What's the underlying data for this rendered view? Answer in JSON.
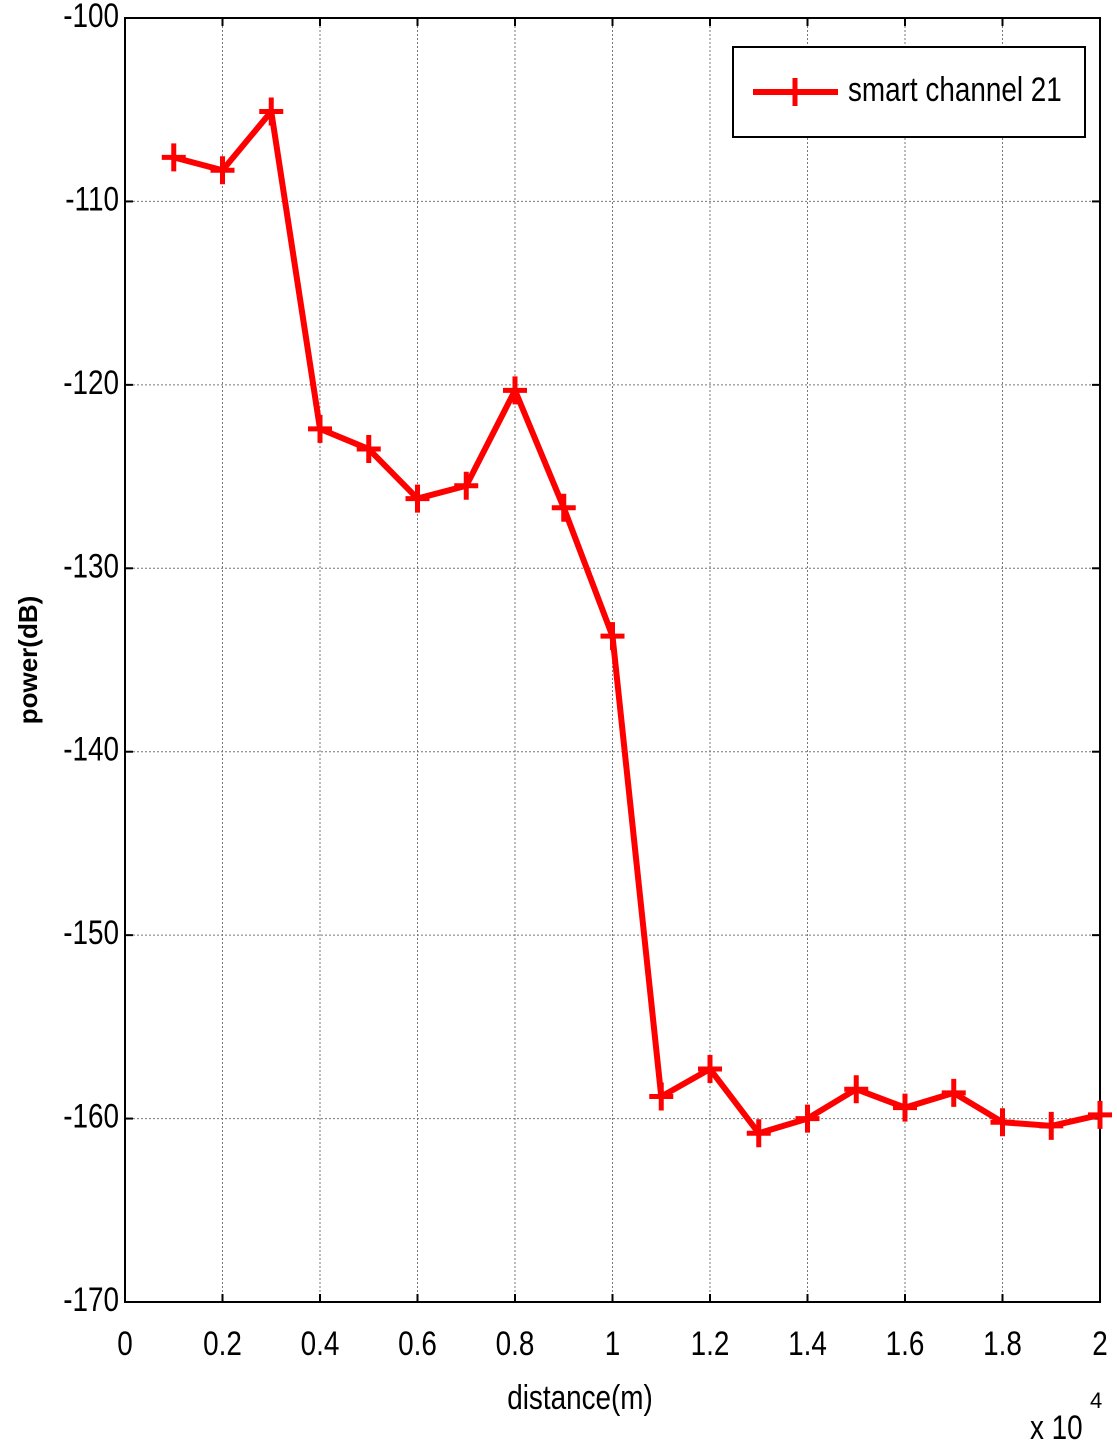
{
  "chart_data": {
    "type": "line",
    "xlabel": "distance(m)",
    "ylabel": "power(dB)",
    "x_multiplier": {
      "base": "x 10",
      "exponent": "4"
    },
    "x": [
      0.1,
      0.2,
      0.3,
      0.4,
      0.5,
      0.6,
      0.7,
      0.8,
      0.9,
      1.0,
      1.1,
      1.2,
      1.3,
      1.4,
      1.5,
      1.6,
      1.7,
      1.8,
      1.9,
      2.0
    ],
    "series": [
      {
        "name": "smart channel 21",
        "color": "#ff0000",
        "values": [
          -107.6,
          -108.3,
          -105.1,
          -122.4,
          -123.5,
          -126.2,
          -125.5,
          -120.3,
          -126.7,
          -133.7,
          -158.8,
          -157.3,
          -160.8,
          -160.0,
          -158.4,
          -159.4,
          -158.6,
          -160.2,
          -160.4,
          -159.8
        ]
      }
    ],
    "xlim": [
      0,
      2
    ],
    "xticks": [
      0,
      0.2,
      0.4,
      0.6,
      0.8,
      1,
      1.2,
      1.4,
      1.6,
      1.8,
      2
    ],
    "ylim": [
      -170,
      -100
    ],
    "yticks": [
      -170,
      -160,
      -150,
      -140,
      -130,
      -120,
      -110,
      -100
    ],
    "grid": true,
    "legend": "upper right"
  }
}
